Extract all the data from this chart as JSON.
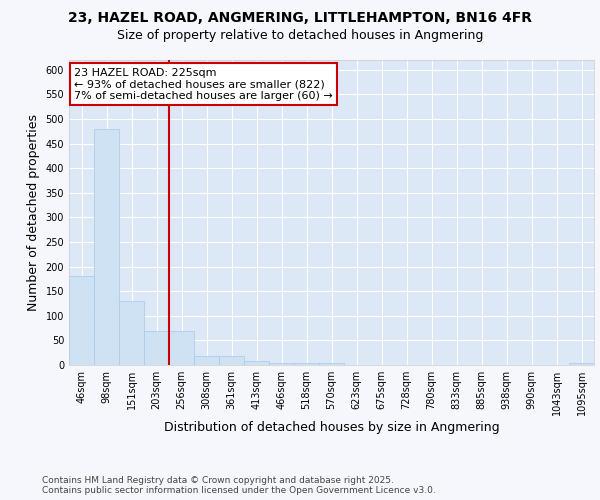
{
  "title_line1": "23, HAZEL ROAD, ANGMERING, LITTLEHAMPTON, BN16 4FR",
  "title_line2": "Size of property relative to detached houses in Angmering",
  "xlabel": "Distribution of detached houses by size in Angmering",
  "ylabel": "Number of detached properties",
  "bins": [
    "46sqm",
    "98sqm",
    "151sqm",
    "203sqm",
    "256sqm",
    "308sqm",
    "361sqm",
    "413sqm",
    "466sqm",
    "518sqm",
    "570sqm",
    "623sqm",
    "675sqm",
    "728sqm",
    "780sqm",
    "833sqm",
    "885sqm",
    "938sqm",
    "990sqm",
    "1043sqm",
    "1095sqm"
  ],
  "values": [
    180,
    480,
    130,
    70,
    70,
    18,
    18,
    8,
    5,
    5,
    4,
    0,
    0,
    0,
    0,
    0,
    0,
    0,
    0,
    0,
    4
  ],
  "bar_color": "#cfe2f3",
  "bar_edge_color": "#a8c8e8",
  "property_line_color": "#cc0000",
  "property_line_x": 3.5,
  "annotation_text": "23 HAZEL ROAD: 225sqm\n← 93% of detached houses are smaller (822)\n7% of semi-detached houses are larger (60) →",
  "annotation_box_color": "#cc0000",
  "annotation_text_color": "#000000",
  "annotation_bg_color": "#ffffff",
  "ylim": [
    0,
    620
  ],
  "yticks": [
    0,
    50,
    100,
    150,
    200,
    250,
    300,
    350,
    400,
    450,
    500,
    550,
    600
  ],
  "plot_bg_color": "#dce8f5",
  "fig_bg_color": "#f5f7fc",
  "grid_color": "#ffffff",
  "footer_text": "Contains HM Land Registry data © Crown copyright and database right 2025.\nContains public sector information licensed under the Open Government Licence v3.0.",
  "title_fontsize": 10,
  "subtitle_fontsize": 9,
  "label_fontsize": 9,
  "tick_fontsize": 7,
  "footer_fontsize": 6.5,
  "annot_fontsize": 8
}
